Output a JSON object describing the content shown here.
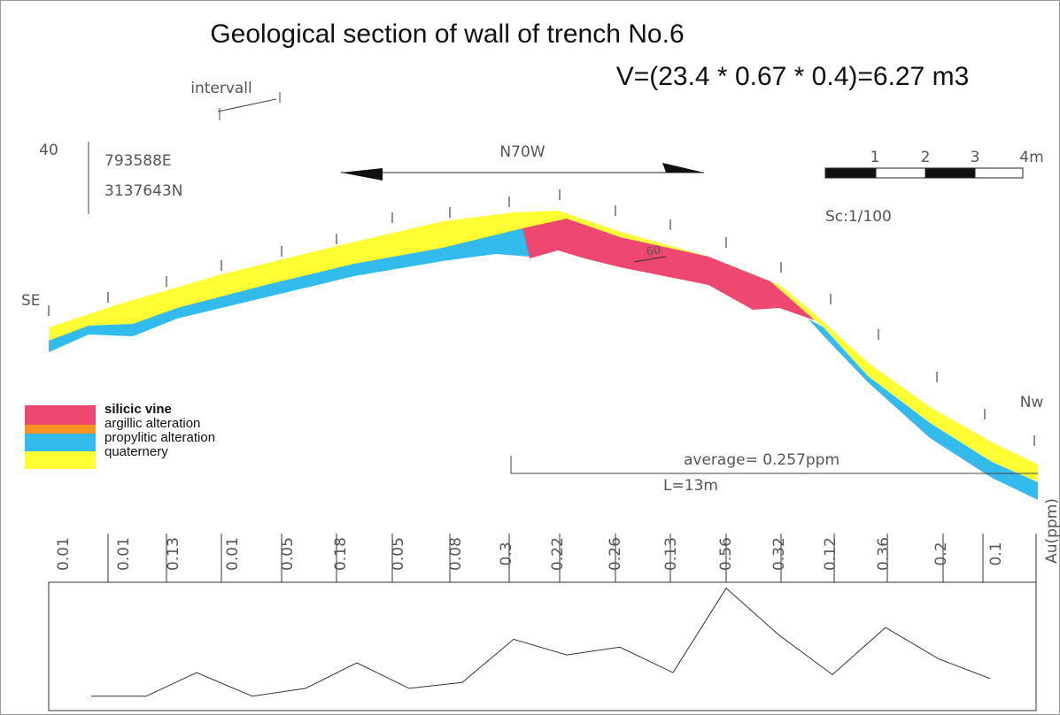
{
  "header": {
    "title": "Geological section of wall of trench No.6",
    "volume": "V=(23.4 * 0.67 * 0.4)=6.27 m3"
  },
  "section": {
    "interval_label": "intervall",
    "station": "40",
    "easting": "793588E",
    "northing": "3137643N",
    "direction": "N70W",
    "start_label": "SE",
    "end_label": "Nw",
    "dip": "60",
    "scale_labels": [
      "1",
      "2",
      "3",
      "4m"
    ],
    "scale": "Sc:1/100",
    "average": "average= 0.257ppm",
    "length": "L=13m"
  },
  "legend": {
    "items": [
      {
        "label": "silicic vine",
        "color": "#ee4870"
      },
      {
        "label": "argillic alteration",
        "color": "#f7931e"
      },
      {
        "label": "propylitic alteration",
        "color": "#33bbee"
      },
      {
        "label": "quaternery",
        "color": "#ffff33"
      }
    ]
  },
  "au_profile": {
    "label": "Au(ppm)",
    "values": [
      0.01,
      0.01,
      0.13,
      0.01,
      0.05,
      0.18,
      0.05,
      0.08,
      0.3,
      0.22,
      0.26,
      0.13,
      0.56,
      0.32,
      0.12,
      0.36,
      0.2,
      0.1
    ]
  }
}
